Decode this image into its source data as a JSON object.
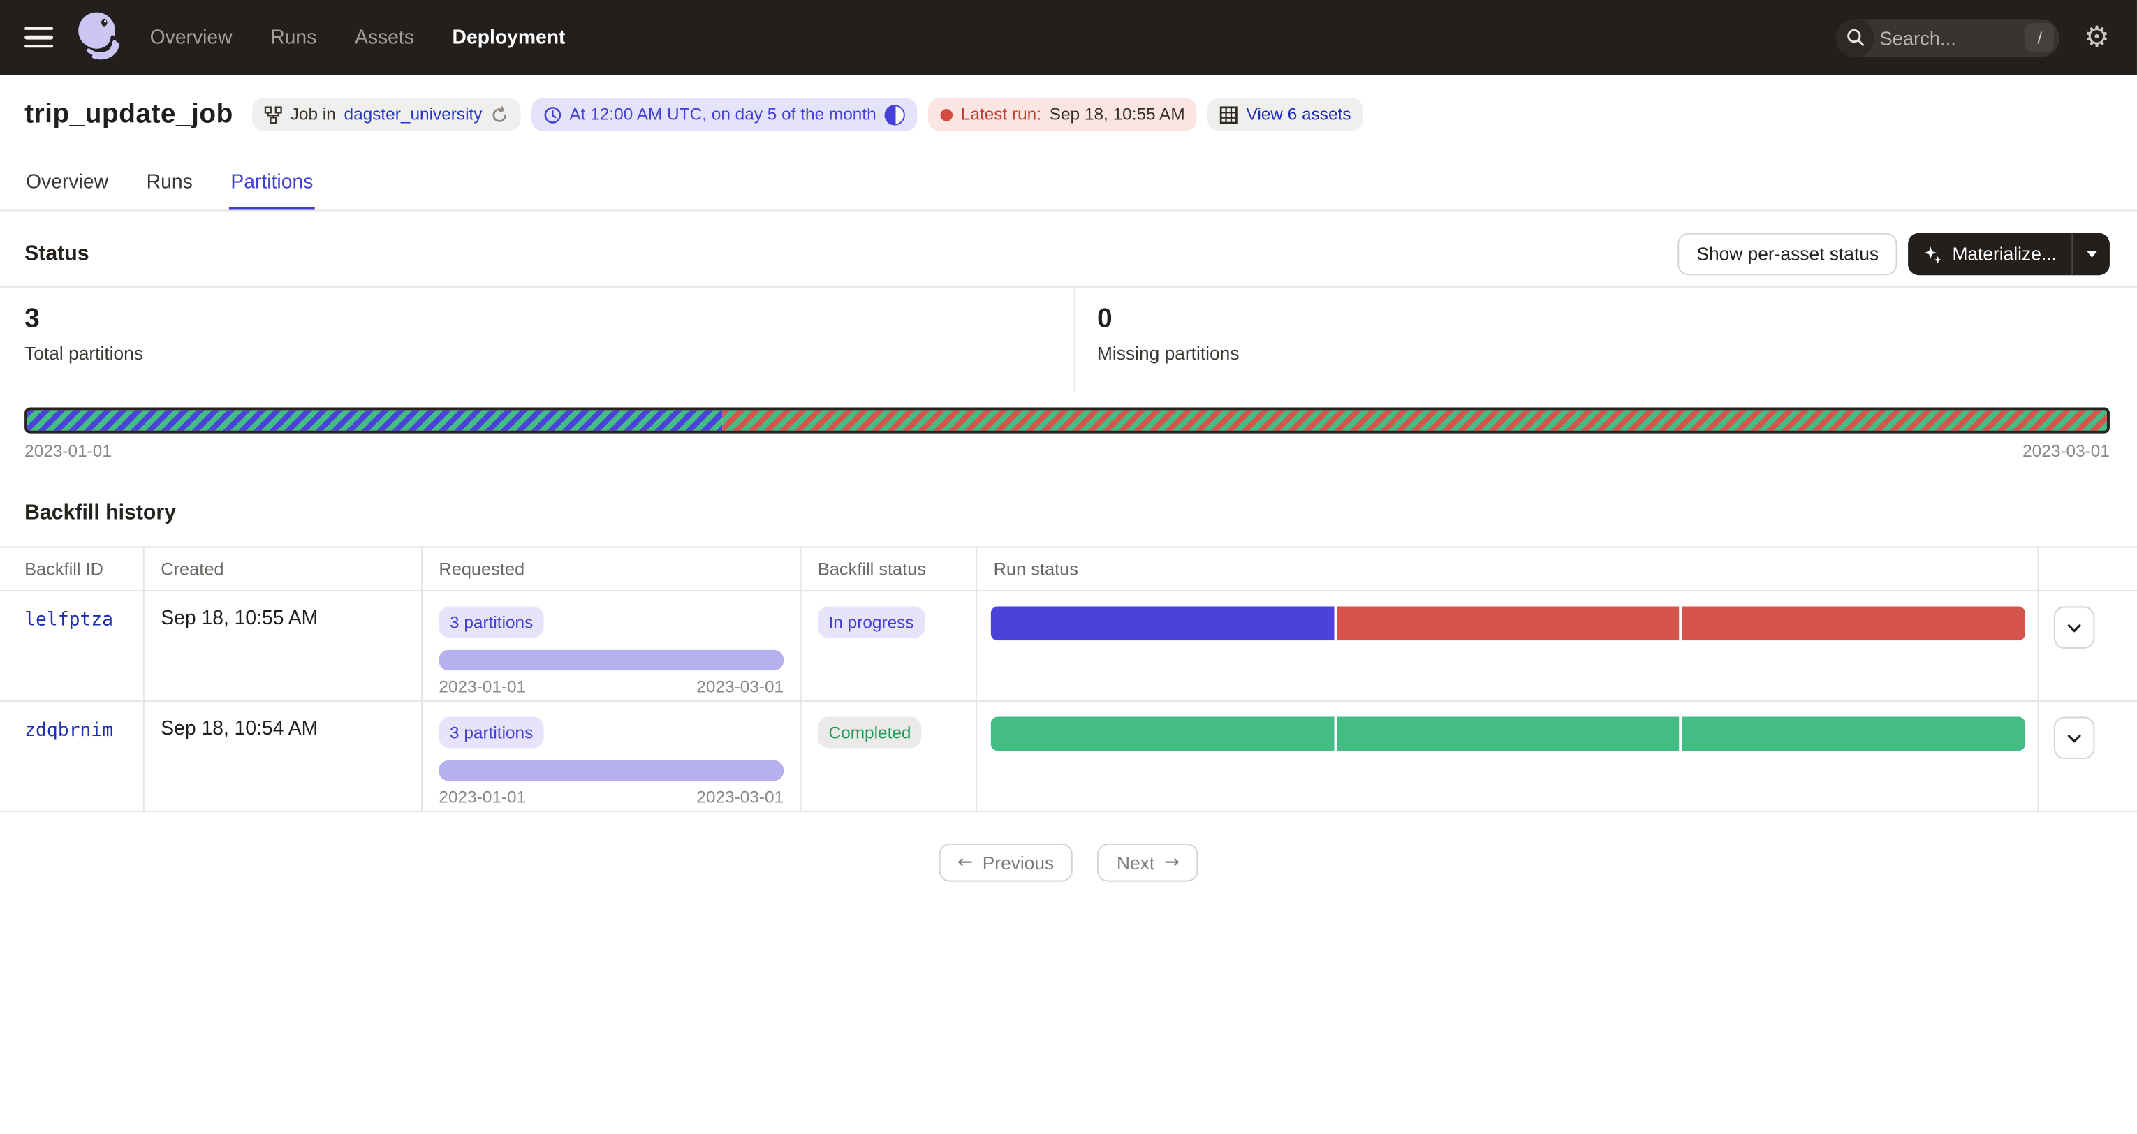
{
  "nav": {
    "links": [
      {
        "label": "Overview"
      },
      {
        "label": "Runs"
      },
      {
        "label": "Assets"
      },
      {
        "label": "Deployment"
      }
    ],
    "search": {
      "placeholder": "Search...",
      "shortcut": "/"
    }
  },
  "header": {
    "title": "trip_update_job",
    "job_tag": {
      "prefix": "Job in",
      "repo": "dagster_university"
    },
    "schedule_tag": {
      "label": "At 12:00 AM UTC, on day 5 of the month",
      "toggle_on": true
    },
    "latest_run_tag": {
      "label": "Latest run:",
      "value": "Sep 18, 10:55 AM"
    },
    "assets_tag": {
      "label": "View 6 assets"
    }
  },
  "tabs": [
    {
      "label": "Overview"
    },
    {
      "label": "Runs"
    },
    {
      "label": "Partitions",
      "active": true
    }
  ],
  "status_section": {
    "heading": "Status",
    "show_per_asset_button": "Show per-asset status",
    "materialize_button": "Materialize...",
    "stats": [
      {
        "value": "3",
        "label": "Total partitions"
      },
      {
        "value": "0",
        "label": "Missing partitions"
      }
    ],
    "partition_bar": {
      "start_label": "2023-01-01",
      "end_label": "2023-03-01",
      "segments": [
        {
          "pattern": [
            "in_progress",
            "succeeded"
          ],
          "width_pct": 33.4
        },
        {
          "pattern": [
            "failed",
            "succeeded"
          ],
          "width_pct": 66.6
        }
      ]
    }
  },
  "backfill": {
    "heading": "Backfill history",
    "columns": [
      "Backfill ID",
      "Created",
      "Requested",
      "Backfill status",
      "Run status"
    ],
    "rows": [
      {
        "id": "lelfptza",
        "created": "Sep 18, 10:55 AM",
        "requested": "3 partitions",
        "range_start": "2023-01-01",
        "range_end": "2023-03-01",
        "status": "In progress",
        "status_kind": "progress",
        "runs": [
          "in_progress",
          "failed",
          "failed"
        ]
      },
      {
        "id": "zdqbrnim",
        "created": "Sep 18, 10:54 AM",
        "requested": "3 partitions",
        "range_start": "2023-01-01",
        "range_end": "2023-03-01",
        "status": "Completed",
        "status_kind": "completed",
        "runs": [
          "succeeded",
          "succeeded",
          "succeeded"
        ]
      }
    ]
  },
  "pagination": {
    "previous": "Previous",
    "next": "Next"
  },
  "palette": {
    "in_progress": "#4B43D9",
    "failed": "#D5544B",
    "succeeded": "#44BD85",
    "range_purple": "#B7B0EE",
    "accent": "#4340D8",
    "nav_bg": "#231F1D"
  }
}
